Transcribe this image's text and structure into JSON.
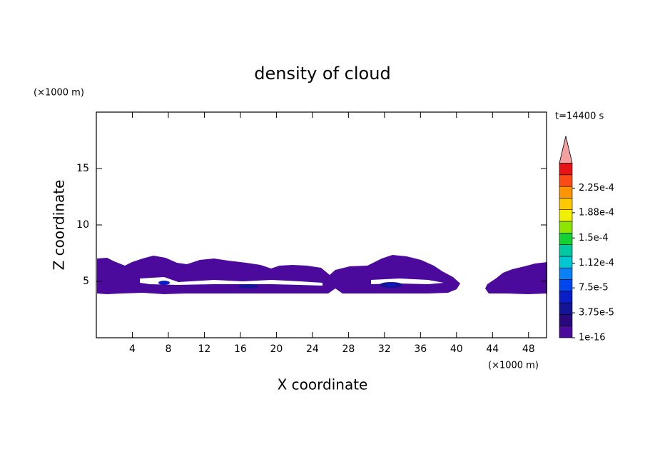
{
  "chart_data": {
    "type": "contour",
    "title": "density of cloud",
    "x_label": "X coordinate",
    "y_label": "Z coordinate",
    "x_unit": "(×1000 m)",
    "y_unit": "(×1000 m)",
    "time_label": "t=14400 s",
    "xlim": [
      0,
      50
    ],
    "xticks": [
      4,
      8,
      12,
      16,
      20,
      24,
      28,
      32,
      36,
      40,
      44,
      48
    ],
    "ylim": [
      0,
      20
    ],
    "yticks": [
      5,
      10,
      15
    ],
    "colorbar": {
      "clim": [
        0,
        0.0002625
      ],
      "colors": [
        "#4b0a9b",
        "#28087c",
        "#141496",
        "#0a1ec8",
        "#0046f0",
        "#0a82f5",
        "#00c8d2",
        "#00c8a0",
        "#14d232",
        "#8ce600",
        "#f0f000",
        "#ffc800",
        "#ff9600",
        "#ff4b14",
        "#e61414"
      ],
      "over_color": "#f5a0a0",
      "ticks": [
        1e-16,
        {
          "value": 3.75e-05,
          "label": "3.75e-5"
        },
        {
          "value": 7.5e-05,
          "label": "7.5e-5"
        },
        {
          "value": 0.000112,
          "label": "1.12e-4"
        },
        {
          "value": 0.00015,
          "label": "1.5e-4"
        },
        {
          "value": 0.000188,
          "label": "1.88e-4"
        },
        {
          "value": 0.000225,
          "label": "2.25e-4"
        }
      ]
    }
  }
}
